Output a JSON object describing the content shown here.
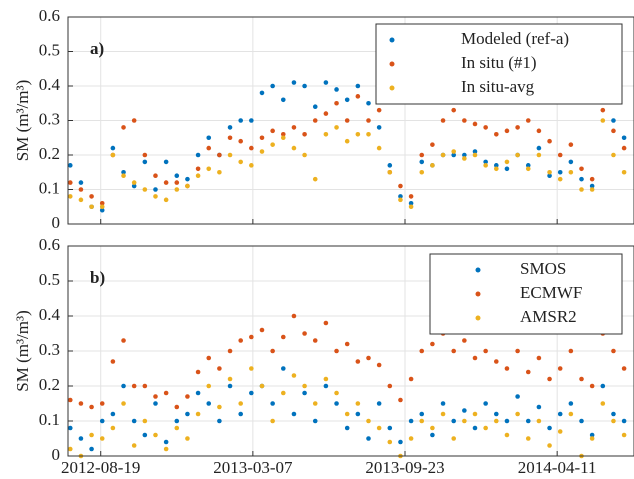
{
  "chart_data": [
    {
      "type": "scatter",
      "panel_label": "a)",
      "ylabel": "SM (m³/m³)",
      "x": [
        "2012-07-10",
        "2012-07-24",
        "2012-08-07",
        "2012-08-21",
        "2012-09-04",
        "2012-09-18",
        "2012-10-02",
        "2012-10-16",
        "2012-10-30",
        "2012-11-13",
        "2012-11-27",
        "2012-12-11",
        "2012-12-25",
        "2013-01-08",
        "2013-01-22",
        "2013-02-05",
        "2013-02-19",
        "2013-03-05",
        "2013-03-19",
        "2013-04-02",
        "2013-04-16",
        "2013-04-30",
        "2013-05-14",
        "2013-05-28",
        "2013-06-11",
        "2013-06-25",
        "2013-07-09",
        "2013-07-23",
        "2013-08-06",
        "2013-08-20",
        "2013-09-03",
        "2013-09-17",
        "2013-10-01",
        "2013-10-15",
        "2013-10-29",
        "2013-11-12",
        "2013-11-26",
        "2013-12-10",
        "2013-12-24",
        "2014-01-07",
        "2014-01-21",
        "2014-02-04",
        "2014-02-18",
        "2014-03-04",
        "2014-03-18",
        "2014-04-01",
        "2014-04-15",
        "2014-04-29",
        "2014-05-13",
        "2014-05-27",
        "2014-06-10",
        "2014-06-24",
        "2014-07-08"
      ],
      "series": [
        {
          "name": "Modeled (ref-a)",
          "color": "#0072BD",
          "values": [
            0.17,
            0.12,
            0.05,
            0.04,
            0.22,
            0.15,
            0.11,
            0.18,
            0.1,
            0.18,
            0.14,
            0.13,
            0.2,
            0.25,
            0.2,
            0.28,
            0.3,
            0.3,
            0.38,
            0.4,
            0.36,
            0.41,
            0.4,
            0.34,
            0.41,
            0.39,
            0.36,
            0.4,
            0.35,
            0.28,
            0.17,
            0.08,
            0.06,
            0.18,
            0.17,
            0.2,
            0.2,
            0.2,
            0.21,
            0.18,
            0.17,
            0.16,
            0.2,
            0.17,
            0.22,
            0.14,
            0.15,
            0.18,
            0.13,
            0.11,
            0.4,
            0.3,
            0.25
          ]
        },
        {
          "name": "In situ (#1)",
          "color": "#D95319",
          "values": [
            0.12,
            0.1,
            0.08,
            0.06,
            0.2,
            0.28,
            0.3,
            0.2,
            0.14,
            0.12,
            0.12,
            0.11,
            0.16,
            0.22,
            0.2,
            0.25,
            0.24,
            0.22,
            0.25,
            0.27,
            0.26,
            0.28,
            0.26,
            0.3,
            0.32,
            0.35,
            0.3,
            0.37,
            0.3,
            0.33,
            0.15,
            0.11,
            0.08,
            0.2,
            0.23,
            0.3,
            0.33,
            0.3,
            0.29,
            0.28,
            0.26,
            0.27,
            0.28,
            0.3,
            0.27,
            0.24,
            0.2,
            0.23,
            0.16,
            0.13,
            0.33,
            0.27,
            0.22
          ]
        },
        {
          "name": "In situ-avg",
          "color": "#EDB120",
          "values": [
            0.08,
            0.07,
            0.05,
            0.05,
            0.2,
            0.14,
            0.12,
            0.1,
            0.08,
            0.07,
            0.1,
            0.11,
            0.14,
            0.16,
            0.15,
            0.2,
            0.18,
            0.17,
            0.21,
            0.23,
            0.25,
            0.22,
            0.2,
            0.13,
            0.26,
            0.28,
            0.24,
            0.26,
            0.26,
            0.22,
            0.15,
            0.07,
            0.05,
            0.15,
            0.17,
            0.2,
            0.21,
            0.19,
            0.2,
            0.17,
            0.16,
            0.18,
            0.2,
            0.16,
            0.2,
            0.15,
            0.13,
            0.15,
            0.1,
            0.1,
            0.3,
            0.2,
            0.15
          ]
        }
      ],
      "xlim": [
        "2012-07-07",
        "2014-07-21"
      ],
      "xticks": [
        "2012-08-19",
        "2013-03-07",
        "2013-09-23",
        "2014-04-11"
      ],
      "xtick_labels": false,
      "ylim": [
        0,
        0.6
      ],
      "yticks": [
        0,
        0.1,
        0.2,
        0.3,
        0.4,
        0.5,
        0.6
      ],
      "grid": true,
      "legend": "upper right"
    },
    {
      "type": "scatter",
      "panel_label": "b)",
      "ylabel": "SM (m³/m³)",
      "x": [
        "2012-07-10",
        "2012-07-24",
        "2012-08-07",
        "2012-08-21",
        "2012-09-04",
        "2012-09-18",
        "2012-10-02",
        "2012-10-16",
        "2012-10-30",
        "2012-11-13",
        "2012-11-27",
        "2012-12-11",
        "2012-12-25",
        "2013-01-08",
        "2013-01-22",
        "2013-02-05",
        "2013-02-19",
        "2013-03-05",
        "2013-03-19",
        "2013-04-02",
        "2013-04-16",
        "2013-04-30",
        "2013-05-14",
        "2013-05-28",
        "2013-06-11",
        "2013-06-25",
        "2013-07-09",
        "2013-07-23",
        "2013-08-06",
        "2013-08-20",
        "2013-09-03",
        "2013-09-17",
        "2013-10-01",
        "2013-10-15",
        "2013-10-29",
        "2013-11-12",
        "2013-11-26",
        "2013-12-10",
        "2013-12-24",
        "2014-01-07",
        "2014-01-21",
        "2014-02-04",
        "2014-02-18",
        "2014-03-04",
        "2014-03-18",
        "2014-04-01",
        "2014-04-15",
        "2014-04-29",
        "2014-05-13",
        "2014-05-27",
        "2014-06-10",
        "2014-06-24",
        "2014-07-08"
      ],
      "series": [
        {
          "name": "SMOS",
          "color": "#0072BD",
          "values": [
            0.08,
            0.05,
            0.02,
            0.1,
            0.12,
            0.2,
            0.1,
            0.06,
            0.15,
            0.04,
            0.1,
            0.12,
            0.18,
            0.15,
            0.1,
            0.2,
            0.12,
            0.18,
            0.2,
            0.15,
            0.25,
            0.12,
            0.18,
            0.1,
            0.2,
            0.15,
            0.08,
            0.12,
            0.05,
            0.15,
            0.08,
            0.04,
            0.1,
            0.12,
            0.06,
            0.15,
            0.1,
            0.13,
            0.08,
            0.15,
            0.12,
            0.1,
            0.17,
            0.1,
            0.14,
            0.08,
            0.12,
            0.15,
            0.1,
            0.06,
            0.2,
            0.12,
            0.1
          ]
        },
        {
          "name": "ECMWF",
          "color": "#D95319",
          "values": [
            0.16,
            0.15,
            0.14,
            0.15,
            0.27,
            0.33,
            0.2,
            0.2,
            0.17,
            0.18,
            0.14,
            0.17,
            0.24,
            0.28,
            0.25,
            0.3,
            0.33,
            0.34,
            0.36,
            0.3,
            0.34,
            0.4,
            0.35,
            0.33,
            0.38,
            0.3,
            0.32,
            0.27,
            0.28,
            0.26,
            0.2,
            0.16,
            0.22,
            0.3,
            0.32,
            0.35,
            0.3,
            0.33,
            0.28,
            0.3,
            0.27,
            0.25,
            0.3,
            0.24,
            0.28,
            0.22,
            0.25,
            0.3,
            0.22,
            0.2,
            0.35,
            0.3,
            0.25
          ]
        },
        {
          "name": "AMSR2",
          "color": "#EDB120",
          "values": [
            0.02,
            0,
            0.06,
            0.05,
            0.08,
            0.15,
            0.03,
            0.1,
            0.06,
            0.02,
            0.08,
            0.05,
            0.12,
            0.2,
            0.14,
            0.22,
            0.15,
            0.25,
            0.2,
            0.1,
            0.18,
            0.23,
            0.2,
            0.15,
            0.22,
            0.18,
            0.12,
            0.15,
            0.1,
            0.08,
            0.04,
            0,
            0.05,
            0.1,
            0.08,
            0.12,
            0.05,
            0.1,
            0.12,
            0.08,
            0.1,
            0.06,
            0.12,
            0.05,
            0.1,
            0.03,
            0.07,
            0.12,
            0,
            0.05,
            0.15,
            0.1,
            0.06
          ]
        }
      ],
      "xlim": [
        "2012-07-07",
        "2014-07-21"
      ],
      "xticks": [
        "2012-08-19",
        "2013-03-07",
        "2013-09-23",
        "2014-04-11"
      ],
      "xtick_labels": true,
      "ylim": [
        0,
        0.6
      ],
      "yticks": [
        0,
        0.1,
        0.2,
        0.3,
        0.4,
        0.5,
        0.6
      ],
      "grid": true,
      "legend": "upper right"
    }
  ]
}
